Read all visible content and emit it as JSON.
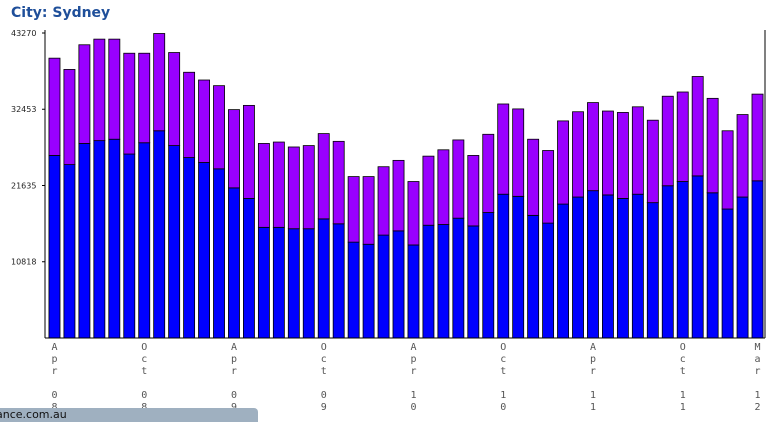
{
  "title": "City: Sydney",
  "status_bar": {
    "text": "ance.com.au"
  },
  "colors": {
    "lower": "#0000ff",
    "upper": "#9900ff",
    "outline": "#000000",
    "title": "#1f4f9a"
  },
  "chart_data": {
    "type": "bar",
    "stacked": true,
    "ylim": [
      0,
      43270
    ],
    "yticks": [
      10818,
      21635,
      32453,
      43270
    ],
    "xtick_labels": [
      {
        "index": 0,
        "month": "Apr",
        "year": "08"
      },
      {
        "index": 6,
        "month": "Oct",
        "year": "08"
      },
      {
        "index": 12,
        "month": "Apr",
        "year": "09"
      },
      {
        "index": 18,
        "month": "Oct",
        "year": "09"
      },
      {
        "index": 24,
        "month": "Apr",
        "year": "10"
      },
      {
        "index": 30,
        "month": "Oct",
        "year": "10"
      },
      {
        "index": 36,
        "month": "Apr",
        "year": "11"
      },
      {
        "index": 42,
        "month": "Oct",
        "year": "11"
      },
      {
        "index": 47,
        "month": "Mar",
        "year": "12"
      }
    ],
    "series": [
      {
        "color": "#0000ff",
        "values": [
          25900,
          24600,
          27600,
          28000,
          28200,
          26100,
          27700,
          29400,
          27300,
          25600,
          24900,
          24000,
          21300,
          19800,
          15700,
          15700,
          15500,
          15500,
          16900,
          16200,
          13600,
          13300,
          14600,
          15200,
          13200,
          16000,
          16100,
          17000,
          15900,
          17800,
          20400,
          20100,
          17400,
          16300,
          19000,
          20000,
          20900,
          20300,
          19800,
          20400,
          19200,
          21600,
          22200,
          23000,
          20600,
          18300,
          20000,
          22300
        ]
      },
      {
        "color": "#9900ff",
        "values": [
          13800,
          13500,
          14000,
          14400,
          14200,
          14300,
          12700,
          13800,
          13200,
          12100,
          11700,
          11800,
          11100,
          13200,
          11900,
          12100,
          11600,
          11800,
          12100,
          11700,
          9300,
          9600,
          9700,
          10000,
          9000,
          9800,
          10600,
          11100,
          10000,
          11100,
          12800,
          12400,
          10800,
          10300,
          11800,
          12100,
          12500,
          11900,
          12200,
          12400,
          11700,
          12700,
          12700,
          14100,
          13400,
          11100,
          11700,
          12300
        ]
      }
    ]
  }
}
